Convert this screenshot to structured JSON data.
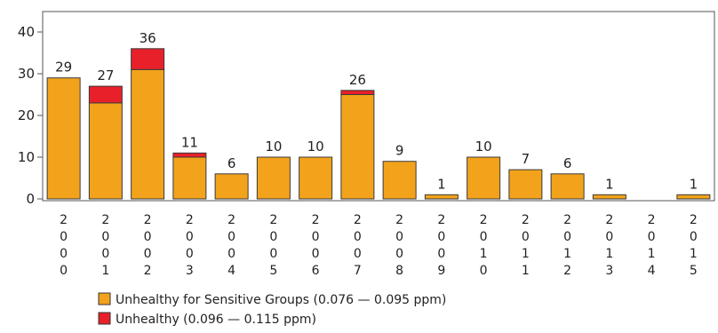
{
  "chart_data": {
    "type": "bar",
    "stacked": true,
    "categories": [
      "2000",
      "2001",
      "2002",
      "2003",
      "2004",
      "2005",
      "2006",
      "2007",
      "2008",
      "2009",
      "2010",
      "2011",
      "2012",
      "2013",
      "2014",
      "2015"
    ],
    "series": [
      {
        "name": "Unhealthy for Sensitive Groups (0.076 — 0.095 ppm)",
        "color": "#f2a31b",
        "values": [
          29,
          23,
          31,
          10,
          6,
          10,
          10,
          25,
          9,
          1,
          10,
          7,
          6,
          1,
          0,
          1
        ]
      },
      {
        "name": "Unhealthy (0.096 — 0.115 ppm)",
        "color": "#e8202a",
        "values": [
          0,
          4,
          5,
          1,
          0,
          0,
          0,
          1,
          0,
          0,
          0,
          0,
          0,
          0,
          0,
          0
        ]
      }
    ],
    "totals": [
      "29",
      "27",
      "36",
      "11",
      "6",
      "10",
      "10",
      "26",
      "9",
      "1",
      "10",
      "7",
      "6",
      "1",
      "",
      "1"
    ],
    "yticks": [
      "0",
      "10",
      "20",
      "30",
      "40"
    ],
    "ylim": [
      0,
      45
    ],
    "grid": false,
    "legend_position": "bottom"
  }
}
